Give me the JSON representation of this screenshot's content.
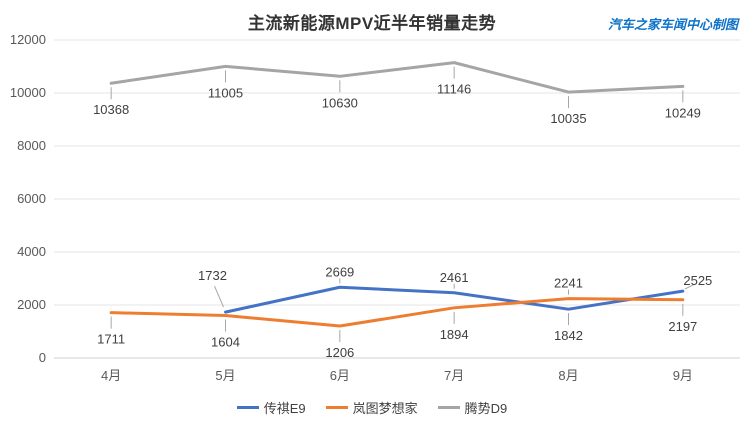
{
  "chart_data": {
    "type": "line",
    "title": "主流新能源MPV近半年销量走势",
    "watermark": "汽车之家车闻中心制图",
    "categories": [
      "4月",
      "5月",
      "6月",
      "7月",
      "8月",
      "9月"
    ],
    "series": [
      {
        "name": "传祺E9",
        "color": "#4472C4",
        "values": [
          null,
          1732,
          2669,
          2461,
          1842,
          2525
        ],
        "label_sides": [
          null,
          "above-left",
          "above",
          "above",
          "below",
          "above-right"
        ]
      },
      {
        "name": "岚图梦想家",
        "color": "#ED7D31",
        "values": [
          1711,
          1604,
          1206,
          1894,
          2241,
          2197
        ],
        "label_sides": [
          "below",
          "below",
          "below",
          "below",
          "above",
          "below"
        ]
      },
      {
        "name": "腾势D9",
        "color": "#A5A5A5",
        "values": [
          10368,
          11005,
          10630,
          11146,
          10035,
          10249
        ],
        "label_sides": [
          "below",
          "below",
          "below",
          "below",
          "below",
          "below"
        ]
      }
    ],
    "y_axis": {
      "min": 0,
      "max": 12000,
      "step": 2000,
      "tick_labels": [
        "0",
        "2000",
        "4000",
        "6000",
        "8000",
        "10000",
        "12000"
      ]
    },
    "grid": true,
    "legend_position": "bottom",
    "colors": {
      "title": "#333333",
      "watermark": "#0E72C8",
      "tick": "#595959",
      "data_label": "#404040",
      "gridline": "#E6E6E6",
      "axis_line": "#D2D2D2",
      "leader": "#A6A6A6"
    }
  }
}
